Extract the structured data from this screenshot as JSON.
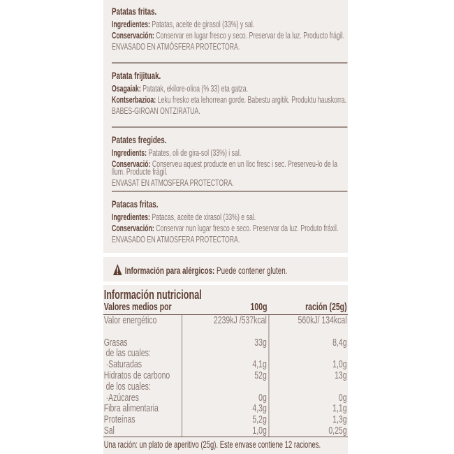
{
  "languages": [
    {
      "title": "Patatas fritas.",
      "ingredients_label": "Ingredientes:",
      "ingredients": "Patatas, aceite de girasol (33%) y sal.",
      "conservation_label": "Conservación:",
      "conservation": "Conservar en lugar fresco y seco. Preservar de la luz. Producto frágil.",
      "packaging": "ENVASADO EN ATMÓSFERA PROTECTORA."
    },
    {
      "title": "Patata frijituak.",
      "ingredients_label": "Osagaiak:",
      "ingredients": "Patatak, ekilore-olioa (% 33) eta gatza.",
      "conservation_label": "Kontserbazioa:",
      "conservation": "Leku fresko eta lehorrean gorde. Babestu argitik. Produktu hauskorra.",
      "packaging": "BABES-GIROAN ONTZIRATUA."
    },
    {
      "title": "Patates fregides.",
      "ingredients_label": "Ingredients:",
      "ingredients": "Patates, oli de gira-sol (33%) i sal.",
      "conservation_label": "Conservació:",
      "conservation": "Conserveu aquest producte en un lloc fresc i sec. Preserveu-lo de la llum. Producte fràgil.",
      "packaging": "ENVASAT EN ATMOSFERA PROTECTORA."
    },
    {
      "title": "Patacas fritas.",
      "ingredients_label": "Ingredientes:",
      "ingredients": "Patacas, aceite de xirasol (33%) e sal.",
      "conservation_label": "Conservación:",
      "conservation": "Conservar nun lugar fresco e seco. Preservar da luz. Produto fráxil.",
      "packaging": "ENVASADO EN ATMOSFERA PROTECTORA."
    }
  ],
  "allergens": {
    "icon": "warning-triangle-icon",
    "label": "Información para alérgicos:",
    "text": "Puede contener gluten."
  },
  "nutrition": {
    "title": "Información nutricional",
    "headers": [
      "Valores medios por",
      "100g",
      "ración (25g)"
    ],
    "rows": [
      [
        "Valor energético",
        "2239kJ /537kcal",
        "560kJ/ 134kcal"
      ],
      [
        "",
        "",
        " "
      ],
      [
        "Grasas",
        "33g",
        "8,4g"
      ],
      [
        " de las cuales:",
        "",
        ""
      ],
      [
        " ·Saturadas",
        "4,1g",
        "1,0g"
      ],
      [
        "Hidratos de carbono",
        "52g",
        "13g"
      ],
      [
        " de los cuales:",
        "",
        ""
      ],
      [
        " ·Azúcares",
        "0g",
        "0g"
      ],
      [
        "Fibra alimentaria",
        "4,3g",
        "1,1g"
      ],
      [
        "Proteínas",
        "5,2g",
        "1,3g"
      ],
      [
        "Sal",
        "1,0g",
        "0,25g"
      ]
    ],
    "footnote": "Una ración: un plato de aperitivo (25g). Este envase contiene 12 raciones."
  },
  "colors": {
    "panel": "#f1eeec",
    "text_dark": "#5e3f33",
    "text_body": "#8a7872"
  }
}
